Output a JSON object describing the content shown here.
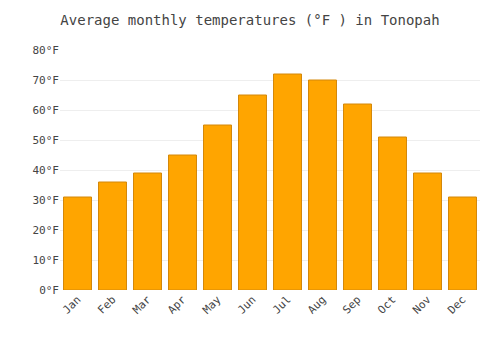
{
  "chart_data": {
    "type": "bar",
    "title": "Average monthly temperatures (°F ) in Tonopah",
    "categories": [
      "Jan",
      "Feb",
      "Mar",
      "Apr",
      "May",
      "Jun",
      "Jul",
      "Aug",
      "Sep",
      "Oct",
      "Nov",
      "Dec"
    ],
    "values": [
      31,
      36,
      39,
      45,
      55,
      65,
      72,
      70,
      62,
      51,
      39,
      31
    ],
    "color": "#FFA500",
    "ylim": [
      0,
      80
    ],
    "yticks": [
      {
        "value": 0,
        "label": "0°F"
      },
      {
        "value": 10,
        "label": "10°F"
      },
      {
        "value": 20,
        "label": "20°F"
      },
      {
        "value": 30,
        "label": "30°F"
      },
      {
        "value": 40,
        "label": "40°F"
      },
      {
        "value": 50,
        "label": "50°F"
      },
      {
        "value": 60,
        "label": "60°F"
      },
      {
        "value": 70,
        "label": "70°F"
      },
      {
        "value": 80,
        "label": "80°F"
      }
    ],
    "grid": true
  }
}
